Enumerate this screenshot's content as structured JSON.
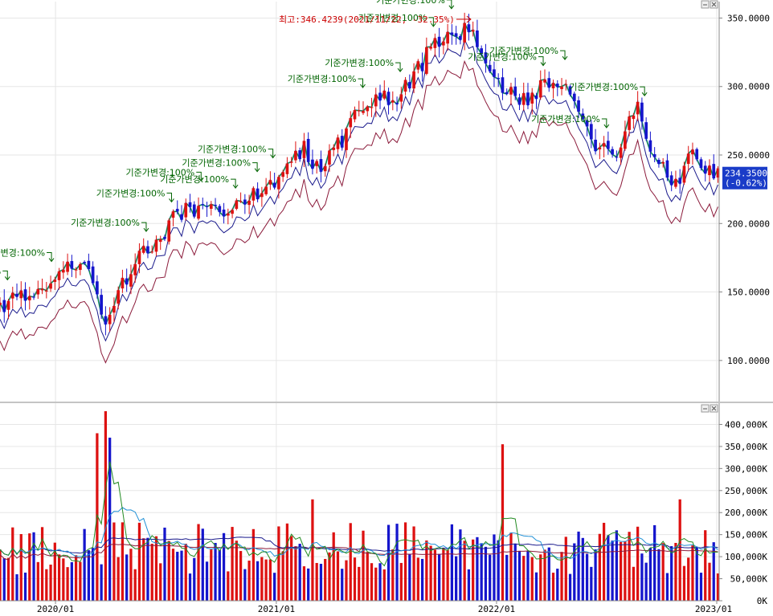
{
  "chart_data": [
    {
      "type": "candlestick",
      "panel": "price",
      "yticks": [
        "350.0000",
        "300.0000",
        "250.0000",
        "200.0000",
        "150.0000",
        "100.0000"
      ],
      "ytick_values": [
        350,
        300,
        250,
        200,
        150,
        100
      ],
      "ylim": [
        70,
        362
      ],
      "xlim": [
        "2019-10-01",
        "2023-01-05"
      ],
      "xticks": [
        {
          "date": "2020-01-01",
          "label": "2020/01"
        },
        {
          "date": "2021-01-01",
          "label": "2021/01"
        },
        {
          "date": "2022-01-01",
          "label": "2022/01"
        },
        {
          "date": "2023-01-01",
          "label": "2023/01"
        }
      ],
      "peak_label": "최고:346.4239(2021/11/22, -32.35%)",
      "current_value": "234.3500",
      "current_change": "(-0.62%)",
      "annotation_text": "기준가변경:100%",
      "annotation_dates": [
        "2019-10-08",
        "2019-12-20",
        "2020-05-25",
        "2020-07-06",
        "2020-08-24",
        "2020-10-20",
        "2020-11-25",
        "2020-12-21",
        "2021-05-19",
        "2021-07-20",
        "2021-09-13",
        "2021-10-13",
        "2022-03-14",
        "2022-04-19",
        "2022-06-27",
        "2022-08-29"
      ],
      "colors": {
        "up": "#dd1111",
        "down": "#1515cc",
        "ma_short": "#228b22",
        "ma_mid": "#1e8fd6",
        "ma_long1": "#1a1a8c",
        "ma_long2": "#8b1a3a",
        "peak": "#cc0000",
        "anno": "#006400"
      }
    },
    {
      "type": "bar",
      "panel": "volume",
      "yticks": [
        "400,000K",
        "350,000K",
        "300,000K",
        "250,000K",
        "200,000K",
        "150,000K",
        "100,000K",
        "50,000K",
        "0K"
      ],
      "ytick_values": [
        400000,
        350000,
        300000,
        250000,
        200000,
        150000,
        100000,
        50000,
        0
      ],
      "ylim": [
        0,
        430000
      ],
      "unit": "K",
      "xlim": [
        "2019-10-01",
        "2023-01-05"
      ],
      "highlights": [
        {
          "date": "2020-03-09",
          "value": 380000,
          "up": true
        },
        {
          "date": "2020-03-23",
          "value": 430000,
          "up": true
        },
        {
          "date": "2020-03-30",
          "value": 370000,
          "up": false
        },
        {
          "date": "2021-03-01",
          "value": 230000,
          "up": true
        },
        {
          "date": "2022-01-10",
          "value": 355000,
          "up": true
        },
        {
          "date": "2022-10-31",
          "value": 230000,
          "up": true
        },
        {
          "date": "2022-12-12",
          "value": 160000,
          "up": true
        }
      ]
    }
  ]
}
